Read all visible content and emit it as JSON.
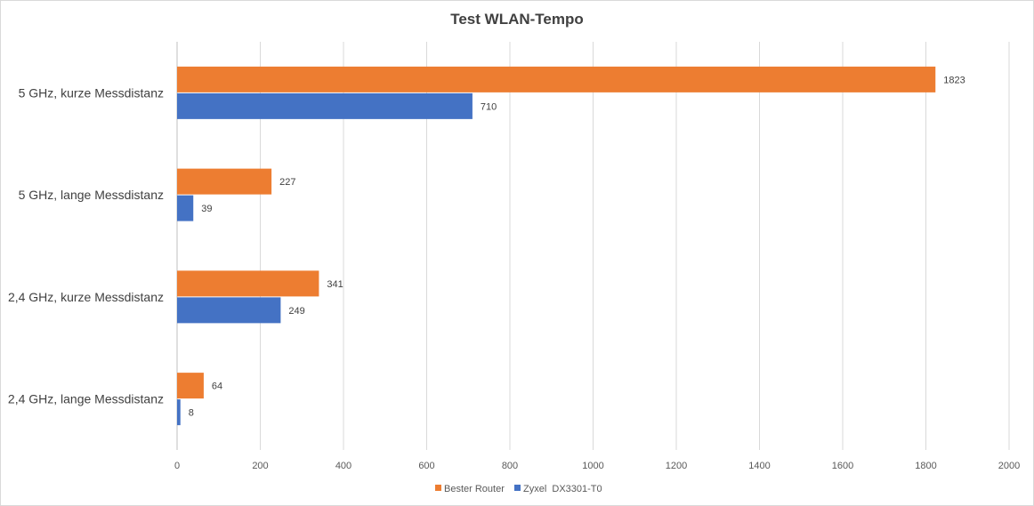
{
  "chart_data": {
    "type": "bar",
    "orientation": "horizontal",
    "title": "Test WLAN-Tempo",
    "xlabel": "",
    "ylabel": "",
    "xlim": [
      0,
      2000
    ],
    "xticks": [
      0,
      200,
      400,
      600,
      800,
      1000,
      1200,
      1400,
      1600,
      1800,
      2000
    ],
    "grid": true,
    "legend_position": "bottom",
    "categories": [
      "5 GHz, kurze Messdistanz",
      "5 GHz, lange Messdistanz",
      "2,4 GHz, kurze Messdistanz",
      "2,4 GHz, lange Messdistanz"
    ],
    "series": [
      {
        "name": "Bester Router",
        "color": "#ED7D31",
        "values": [
          1823,
          227,
          341,
          64
        ]
      },
      {
        "name": "Zyxel  DX3301-T0",
        "color": "#4472C4",
        "values": [
          710,
          39,
          249,
          8
        ]
      }
    ]
  }
}
